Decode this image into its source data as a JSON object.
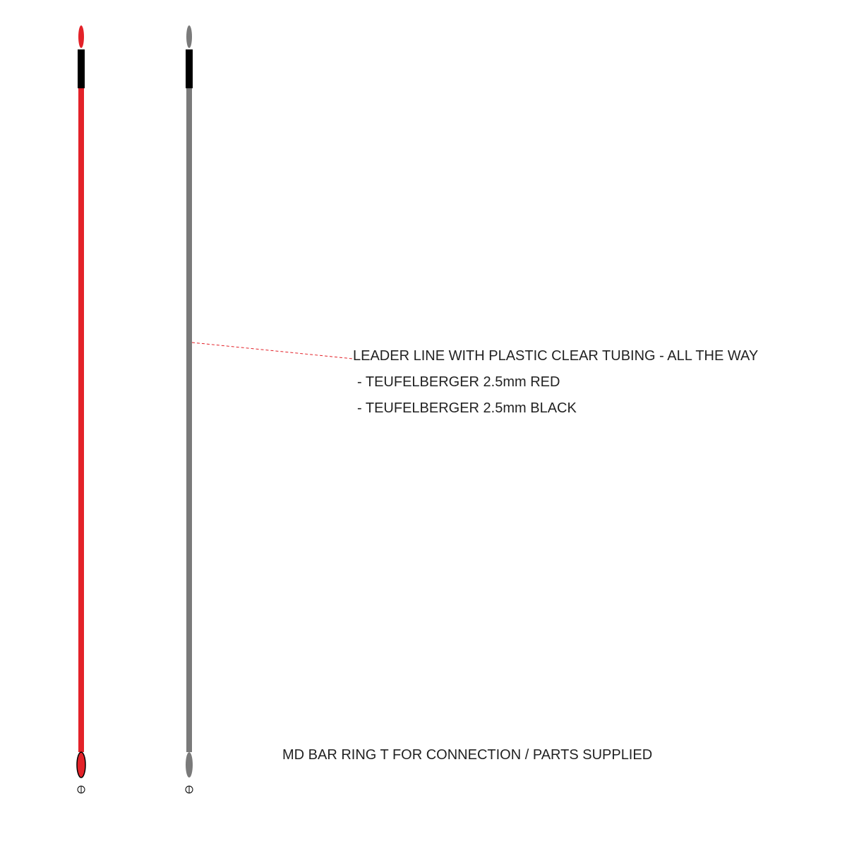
{
  "annotations": {
    "title": "LEADER LINE WITH PLASTIC CLEAR TUBING - ALL THE WAY",
    "items": [
      "- TEUFELBERGER 2.5mm RED",
      "- TEUFELBERGER 2.5mm BLACK"
    ]
  },
  "footer": "MD BAR RING T  FOR CONNECTION / PARTS SUPPLIED"
}
